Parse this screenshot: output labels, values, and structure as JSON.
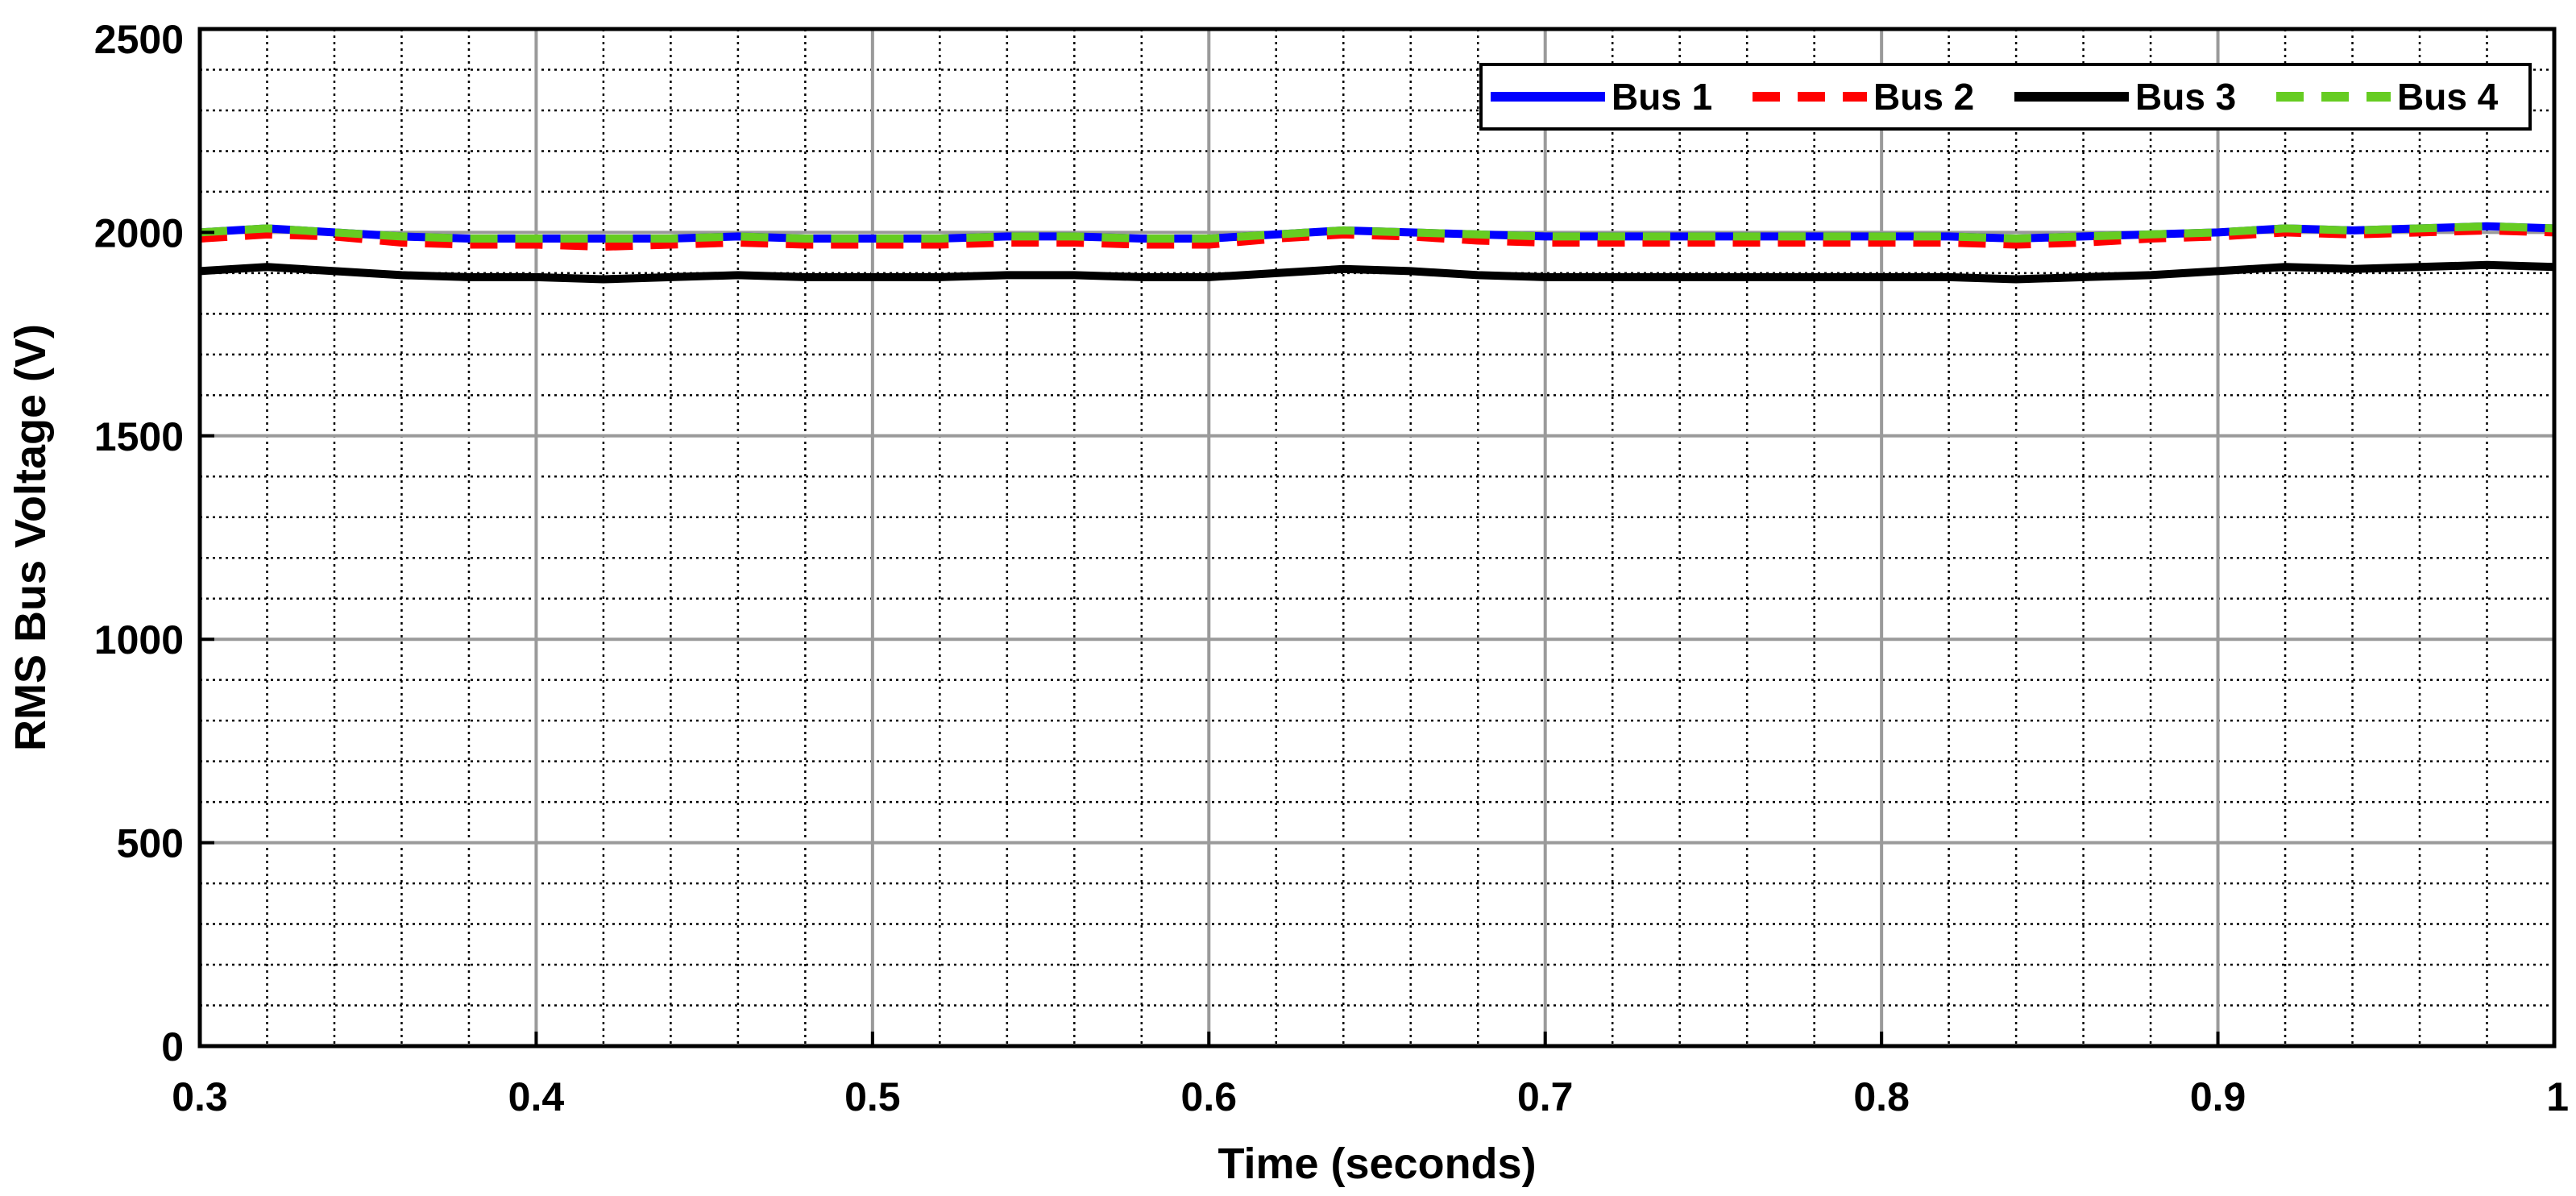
{
  "chart_data": {
    "type": "line",
    "title": "",
    "xlabel": "Time (seconds)",
    "ylabel": "RMS Bus Voltage (V)",
    "xlim": [
      0.3,
      1.0
    ],
    "ylim": [
      0,
      2500
    ],
    "xticks": [
      "0.3",
      "0.4",
      "0.5",
      "0.6",
      "0.7",
      "0.8",
      "0.9",
      "1"
    ],
    "yticks": [
      "0",
      "500",
      "1000",
      "1500",
      "2000",
      "2500"
    ],
    "grid": true,
    "minor_grid": true,
    "legend_position": "top-right",
    "legend_orientation": "horizontal",
    "x": [
      0.3,
      0.32,
      0.34,
      0.36,
      0.38,
      0.4,
      0.42,
      0.44,
      0.46,
      0.48,
      0.5,
      0.52,
      0.54,
      0.56,
      0.58,
      0.6,
      0.62,
      0.64,
      0.66,
      0.68,
      0.7,
      0.72,
      0.74,
      0.76,
      0.78,
      0.8,
      0.82,
      0.84,
      0.86,
      0.88,
      0.9,
      0.92,
      0.94,
      0.96,
      0.98,
      1.0
    ],
    "series": [
      {
        "name": "Bus 1",
        "color": "#0000ff",
        "style": "solid",
        "values": [
          2000,
          2010,
          2000,
          1990,
          1985,
          1985,
          1985,
          1985,
          1990,
          1985,
          1985,
          1985,
          1990,
          1990,
          1985,
          1985,
          1995,
          2005,
          2000,
          1995,
          1990,
          1990,
          1990,
          1990,
          1990,
          1990,
          1990,
          1985,
          1990,
          1995,
          2000,
          2010,
          2005,
          2010,
          2015,
          2010
        ]
      },
      {
        "name": "Bus 2",
        "color": "#ff0000",
        "style": "dashed",
        "values": [
          1985,
          1995,
          1990,
          1975,
          1970,
          1970,
          1965,
          1970,
          1975,
          1970,
          1970,
          1970,
          1975,
          1975,
          1970,
          1970,
          1985,
          1995,
          1990,
          1980,
          1975,
          1975,
          1975,
          1975,
          1975,
          1975,
          1975,
          1970,
          1975,
          1985,
          1990,
          2000,
          1995,
          2000,
          2005,
          2000
        ]
      },
      {
        "name": "Bus 3",
        "color": "#000000",
        "style": "solid",
        "values": [
          1905,
          1915,
          1905,
          1895,
          1890,
          1890,
          1885,
          1890,
          1895,
          1890,
          1890,
          1890,
          1895,
          1895,
          1890,
          1890,
          1900,
          1910,
          1905,
          1895,
          1890,
          1890,
          1890,
          1890,
          1890,
          1890,
          1890,
          1885,
          1890,
          1895,
          1905,
          1915,
          1910,
          1915,
          1920,
          1915
        ]
      },
      {
        "name": "Bus 4",
        "color": "#66cc22",
        "style": "dashed",
        "values": [
          2000,
          2010,
          2000,
          1990,
          1985,
          1985,
          1985,
          1985,
          1990,
          1985,
          1985,
          1985,
          1990,
          1990,
          1985,
          1985,
          1995,
          2005,
          2000,
          1995,
          1990,
          1990,
          1990,
          1990,
          1990,
          1990,
          1990,
          1985,
          1990,
          1995,
          2000,
          2010,
          2005,
          2010,
          2015,
          2010
        ]
      }
    ]
  }
}
